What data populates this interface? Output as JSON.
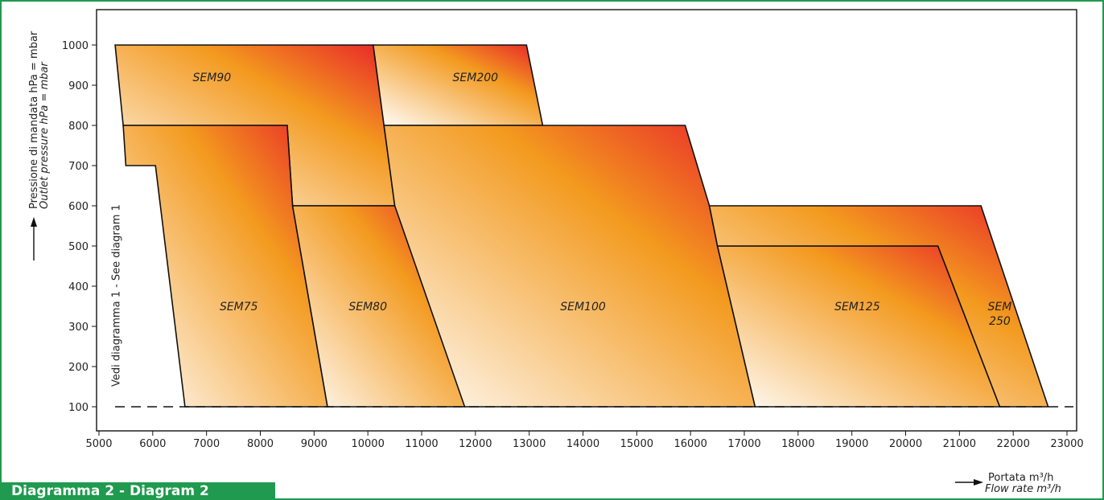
{
  "chart_data": {
    "type": "area",
    "xlabel_it": "Portata",
    "xunit_it": "m³/h",
    "xlabel_en": "Flow rate",
    "xunit_en": "m³/h",
    "ylabel_it": "Pressione di mandata",
    "yunit_it": "hPa = mbar",
    "ylabel_en": "Outlet pressure",
    "yunit_en": "hPa = mbar",
    "xlim": [
      5000,
      23000
    ],
    "ylim": [
      0,
      1050
    ],
    "x_ticks": [
      5000,
      6000,
      7000,
      8000,
      9000,
      10000,
      11000,
      12000,
      13000,
      14000,
      15000,
      16000,
      17000,
      18000,
      19000,
      20000,
      21000,
      22000,
      23000
    ],
    "x_tick_labels": [
      "5000",
      "6000",
      "7000",
      "8000",
      "9000",
      "10000",
      "11000",
      "12000",
      "13000",
      "14000",
      "15000",
      "16000",
      "17000",
      "18000",
      "19000",
      "20000",
      "21000",
      "22000",
      "23000"
    ],
    "y_ticks": [
      100,
      200,
      300,
      400,
      500,
      600,
      700,
      800,
      900,
      1000
    ],
    "y_tick_labels": [
      "100",
      "200",
      "300",
      "400",
      "500",
      "600",
      "700",
      "800",
      "900",
      "1000"
    ],
    "grid": false,
    "reference_line_y": 100,
    "see_also_note": "Vedi diagramma 1 - See diagram 1",
    "zones": [
      {
        "name": "SEM90",
        "label_lines": [
          "SEM90"
        ],
        "label_pos": [
          7100,
          910
        ],
        "points": [
          [
            5300,
            1000
          ],
          [
            10100,
            1000
          ],
          [
            10500,
            600
          ],
          [
            8600,
            600
          ],
          [
            8500,
            800
          ],
          [
            5450,
            800
          ]
        ]
      },
      {
        "name": "SEM200",
        "label_lines": [
          "SEM200"
        ],
        "label_pos": [
          12000,
          910
        ],
        "points": [
          [
            10100,
            1000
          ],
          [
            12950,
            1000
          ],
          [
            13250,
            800
          ],
          [
            10300,
            800
          ]
        ]
      },
      {
        "name": "SEM75",
        "label_lines": [
          "SEM75"
        ],
        "label_pos": [
          7600,
          340
        ],
        "points": [
          [
            5450,
            800
          ],
          [
            8500,
            800
          ],
          [
            8600,
            600
          ],
          [
            9250,
            100
          ],
          [
            6600,
            100
          ],
          [
            6050,
            700
          ],
          [
            5500,
            700
          ]
        ]
      },
      {
        "name": "SEM80",
        "label_lines": [
          "SEM80"
        ],
        "label_pos": [
          10000,
          340
        ],
        "points": [
          [
            8600,
            600
          ],
          [
            10950,
            600
          ],
          [
            11800,
            100
          ],
          [
            9250,
            100
          ]
        ]
      },
      {
        "name": "SEM100",
        "label_lines": [
          "SEM100"
        ],
        "label_pos": [
          14000,
          340
        ],
        "points": [
          [
            10300,
            800
          ],
          [
            15900,
            800
          ],
          [
            16350,
            600
          ],
          [
            16500,
            500
          ],
          [
            17200,
            100
          ],
          [
            11800,
            100
          ],
          [
            10500,
            600
          ]
        ]
      },
      {
        "name": "SEM125",
        "label_lines": [
          "SEM125"
        ],
        "label_pos": [
          19100,
          340
        ],
        "points": [
          [
            16500,
            500
          ],
          [
            20600,
            500
          ],
          [
            21750,
            100
          ],
          [
            17200,
            100
          ]
        ]
      },
      {
        "name": "SEM 250",
        "label_lines": [
          "SEM",
          "250"
        ],
        "label_pos": [
          21750,
          340
        ],
        "points": [
          [
            16350,
            600
          ],
          [
            21400,
            600
          ],
          [
            22650,
            100
          ],
          [
            21750,
            100
          ],
          [
            20600,
            500
          ],
          [
            16500,
            500
          ]
        ]
      }
    ]
  },
  "caption": "Diagramma 2 - Diagram 2",
  "colors": {
    "frame_border": "#1f9a4e",
    "banner_bg": "#1f9a4e",
    "fill_hot": "#e8202a",
    "fill_mid": "#f39a1f",
    "fill_cool": "#ffffff"
  }
}
